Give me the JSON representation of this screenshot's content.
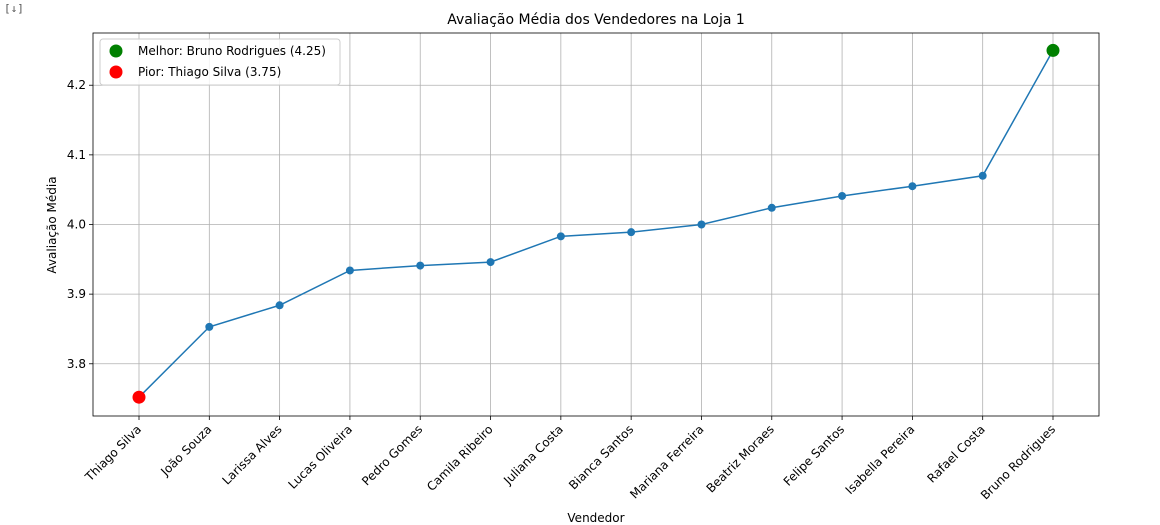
{
  "notebook": {
    "output_icon": "expand-output-icon",
    "output_icon_glyph": "[↓]"
  },
  "chart_data": {
    "type": "line",
    "title": "Avaliação Média dos Vendedores na Loja 1",
    "xlabel": "Vendedor",
    "ylabel": "Avaliação Média",
    "categories": [
      "Thiago Silva",
      "João Souza",
      "Larissa Alves",
      "Lucas Oliveira",
      "Pedro Gomes",
      "Camila Ribeiro",
      "Juliana Costa",
      "Bianca Santos",
      "Mariana Ferreira",
      "Beatriz Moraes",
      "Felipe Santos",
      "Isabella Pereira",
      "Rafael Costa",
      "Bruno Rodrigues"
    ],
    "values": [
      3.752,
      3.853,
      3.884,
      3.934,
      3.941,
      3.946,
      3.983,
      3.989,
      4.0,
      4.024,
      4.041,
      4.055,
      4.07,
      4.25
    ],
    "ylim": [
      3.725,
      4.275
    ],
    "yticks": [
      "3.8",
      "3.9",
      "4.0",
      "4.1",
      "4.2"
    ],
    "grid": true,
    "line_color": "#1f77b4",
    "highlights": [
      {
        "label": "Melhor: Bruno Rodrigues (4.25)",
        "category": "Bruno Rodrigues",
        "value": 4.25,
        "color": "#008000"
      },
      {
        "label": "Pior: Thiago Silva (3.75)",
        "category": "Thiago Silva",
        "value": 3.752,
        "color": "#ff0000"
      }
    ],
    "legend_position": "top-left"
  }
}
